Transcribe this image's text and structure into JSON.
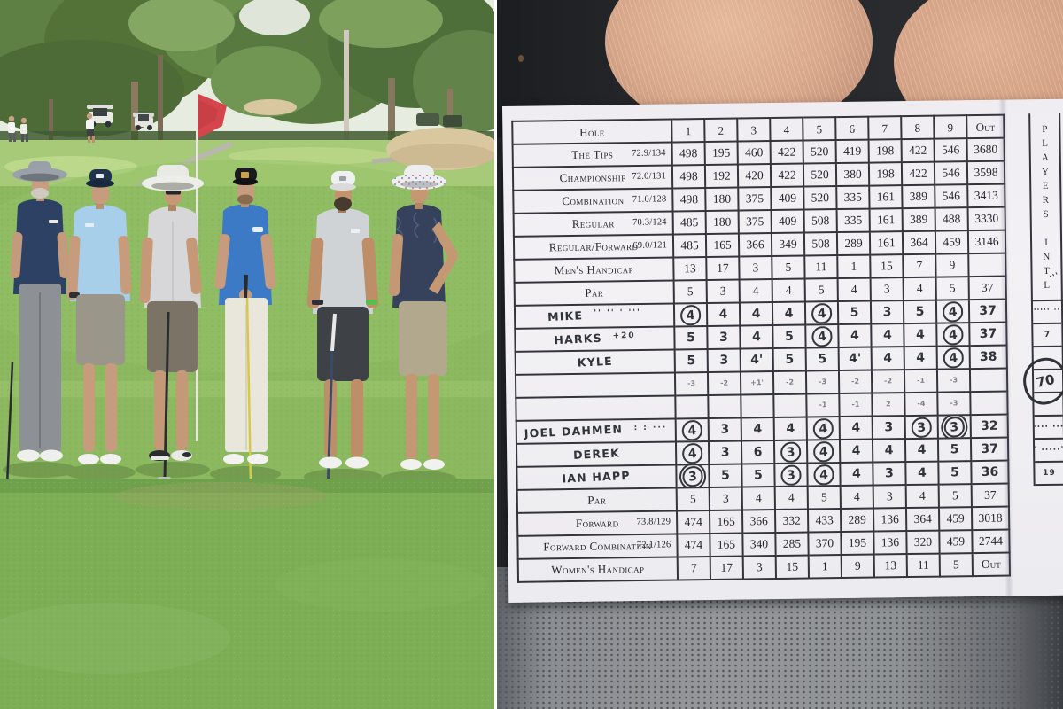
{
  "left_photo": {
    "description": "Six golfers posing on a putting green in front of a red flag, trees, golf carts and a sand bunker behind them"
  },
  "palette": {
    "flag": "#d6454c",
    "sand": "#d9c79f",
    "sky": "#e7ece1",
    "grass_far": "#a6ca77",
    "grass_mid": "#8cb95f",
    "grass_fore": "#7dae55",
    "card_line": "#34343c",
    "pen": "#30333a",
    "pencil": "#7e8087",
    "fabric": "#8f9296",
    "golfers": [
      {
        "hat": "#99a0a8",
        "shirt": "#2d4165",
        "bottoms": "#8d9094"
      },
      {
        "hat": "#20344f",
        "shirt": "#a7cfe9",
        "bottoms": "#9b968a"
      },
      {
        "hat": "#e9eae6",
        "shirt": "#d7d7d9",
        "bottoms": "#7b7466"
      },
      {
        "hat": "#1a1b1e",
        "shirt": "#3d7ac6",
        "bottoms": "#e9e6dc"
      },
      {
        "hat": "#eef0f1",
        "shirt": "#cfd3d6",
        "bottoms": "#3e4247"
      },
      {
        "hat": "#eceef0",
        "shirt": "#36425c",
        "bottoms": "#b2a88e"
      }
    ]
  },
  "scorecard": {
    "side_label": "PLAYERS INTL",
    "side_note": "'''",
    "big_circle": "70",
    "header": {
      "label": "Hole",
      "out": "Out"
    },
    "rows": [
      {
        "name": "header",
        "kind": "header",
        "label": "Hole",
        "cells": [
          "1",
          "2",
          "3",
          "4",
          "5",
          "6",
          "7",
          "8",
          "9"
        ],
        "out": "Out"
      },
      {
        "name": "the-tips",
        "kind": "print",
        "label": "The Tips",
        "rating": "72.9/134",
        "cells": [
          "498",
          "195",
          "460",
          "422",
          "520",
          "419",
          "198",
          "422",
          "546"
        ],
        "out": "3680"
      },
      {
        "name": "championship",
        "kind": "print",
        "label": "Championship",
        "rating": "72.0/131",
        "cells": [
          "498",
          "192",
          "420",
          "422",
          "520",
          "380",
          "198",
          "422",
          "546"
        ],
        "out": "3598"
      },
      {
        "name": "combination",
        "kind": "print",
        "label": "Combination",
        "rating": "71.0/128",
        "cells": [
          "498",
          "180",
          "375",
          "409",
          "520",
          "335",
          "161",
          "389",
          "546"
        ],
        "out": "3413"
      },
      {
        "name": "regular",
        "kind": "print",
        "label": "Regular",
        "rating": "70.3/124",
        "cells": [
          "485",
          "180",
          "375",
          "409",
          "508",
          "335",
          "161",
          "389",
          "488"
        ],
        "out": "3330"
      },
      {
        "name": "regular-forward",
        "kind": "print",
        "label": "Regular/Forward",
        "rating": "69.0/121",
        "cells": [
          "485",
          "165",
          "366",
          "349",
          "508",
          "289",
          "161",
          "364",
          "459"
        ],
        "out": "3146"
      },
      {
        "name": "mens-handicap",
        "kind": "print",
        "label": "Men's Handicap",
        "cells": [
          "13",
          "17",
          "3",
          "5",
          "11",
          "1",
          "15",
          "7",
          "9"
        ],
        "out": ""
      },
      {
        "name": "par",
        "kind": "print",
        "label": "Par",
        "cells": [
          "5",
          "3",
          "4",
          "4",
          "5",
          "4",
          "3",
          "4",
          "5"
        ],
        "out": "37"
      },
      {
        "name": "mike",
        "kind": "hand",
        "label": "MIKE",
        "note": "'' '' ' '''",
        "cells": [
          {
            "v": "4",
            "c": true
          },
          "4",
          "4",
          "4",
          {
            "v": "4",
            "c": true
          },
          "5",
          "3",
          "5",
          {
            "v": "4",
            "c": true
          }
        ],
        "out": "37",
        "margin": "''''' ''"
      },
      {
        "name": "harks",
        "kind": "hand",
        "label": "HARKS",
        "note": "+20",
        "cells": [
          "5",
          "3",
          "4",
          "5",
          {
            "v": "4",
            "c": true
          },
          "4",
          "4",
          "4",
          {
            "v": "4",
            "c": true
          }
        ],
        "out": "37",
        "margin": "7"
      },
      {
        "name": "kyle",
        "kind": "hand",
        "label": "KYLE",
        "cells": [
          "5",
          "3",
          "4'",
          "5",
          "5",
          "4'",
          "4",
          "4",
          {
            "v": "4",
            "c": true
          }
        ],
        "out": "38",
        "margin": ""
      },
      {
        "name": "scribble-1",
        "kind": "scribble",
        "label": "",
        "cells": [
          "-3",
          "-2",
          "+1'",
          "-2",
          "-3",
          "-2",
          "-2",
          "-1",
          "-3"
        ],
        "out": "",
        "margin": ""
      },
      {
        "name": "scribble-2",
        "kind": "scribble",
        "label": "",
        "cells": [
          "",
          "",
          "",
          "",
          "-1",
          "-1",
          "2",
          "-4",
          "-3"
        ],
        "out": "",
        "margin": ""
      },
      {
        "name": "joel",
        "kind": "hand",
        "label": "JOEL DAHMEN",
        "note": ": : ···",
        "cells": [
          {
            "v": "4",
            "c": true
          },
          "3",
          "4",
          "4",
          {
            "v": "4",
            "c": true
          },
          "4",
          "3",
          {
            "v": "3",
            "c": true
          },
          {
            "v": "3",
            "c": true,
            "d": true
          }
        ],
        "out": "32",
        "margin": "····· ····"
      },
      {
        "name": "derek",
        "kind": "hand",
        "label": "DEREK",
        "cells": [
          {
            "v": "4",
            "c": true
          },
          "3",
          "6",
          {
            "v": "3",
            "c": true
          },
          {
            "v": "4",
            "c": true
          },
          "4",
          "4",
          "4",
          "5"
        ],
        "out": "37",
        "margin": "·' ·····''"
      },
      {
        "name": "ian",
        "kind": "hand",
        "label": "IAN HAPP",
        "cells": [
          {
            "v": "3",
            "c": true,
            "d": true
          },
          "5",
          "5",
          {
            "v": "3",
            "c": true
          },
          {
            "v": "4",
            "c": true
          },
          "4",
          "3",
          "4",
          "5"
        ],
        "out": "36",
        "margin": "19"
      },
      {
        "name": "par-2",
        "kind": "print",
        "label": "Par",
        "cells": [
          "5",
          "3",
          "4",
          "4",
          "5",
          "4",
          "3",
          "4",
          "5"
        ],
        "out": "37"
      },
      {
        "name": "forward",
        "kind": "print",
        "label": "Forward",
        "rating": "73.8/129",
        "cells": [
          "474",
          "165",
          "366",
          "332",
          "433",
          "289",
          "136",
          "364",
          "459"
        ],
        "out": "3018"
      },
      {
        "name": "forward-combination",
        "kind": "print",
        "label": "Forward Combination",
        "rating": "72.1/126",
        "cells": [
          "474",
          "165",
          "340",
          "285",
          "370",
          "195",
          "136",
          "320",
          "459"
        ],
        "out": "2744"
      },
      {
        "name": "womens-handicap",
        "kind": "print",
        "label": "Women's Handicap",
        "cells": [
          "7",
          "17",
          "3",
          "15",
          "1",
          "9",
          "13",
          "11",
          "5"
        ],
        "out": "Out"
      }
    ]
  }
}
